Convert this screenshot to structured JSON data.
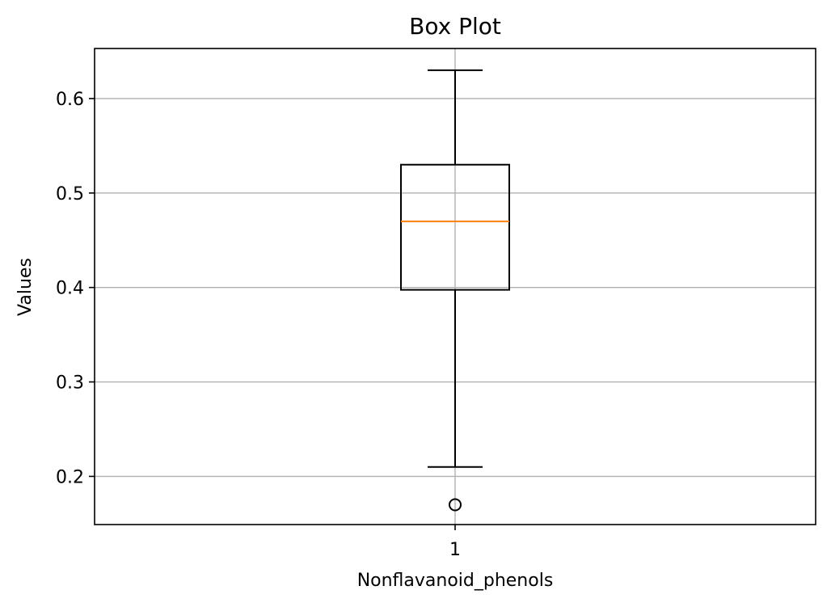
{
  "chart_data": {
    "type": "box",
    "title": "Box Plot",
    "xlabel": "Nonflavanoid_phenols",
    "ylabel": "Values",
    "x_tick_labels": [
      "1"
    ],
    "y_ticks": [
      0.2,
      0.3,
      0.4,
      0.5,
      0.6
    ],
    "y_tick_labels": [
      "0.2",
      "0.3",
      "0.4",
      "0.5",
      "0.6"
    ],
    "ylim": [
      0.149,
      0.653
    ],
    "grid": true,
    "series": [
      {
        "category": "1",
        "whisker_low": 0.21,
        "q1": 0.3975,
        "median": 0.47,
        "q3": 0.53,
        "whisker_high": 0.63,
        "outliers": [
          0.17
        ]
      }
    ],
    "colors": {
      "box": "#000000",
      "median": "#ff7f0e",
      "grid": "#b0b0b0",
      "axes": "#000000"
    }
  }
}
